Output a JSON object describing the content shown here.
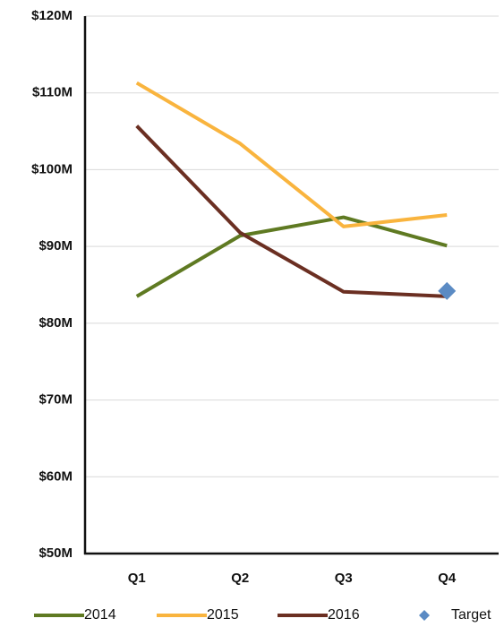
{
  "chart_data": {
    "type": "line",
    "categories": [
      "Q1",
      "Q2",
      "Q3",
      "Q4"
    ],
    "series": [
      {
        "name": "2014",
        "color": "#5f7a22",
        "values": [
          83.5,
          91.4,
          93.8,
          90.1
        ]
      },
      {
        "name": "2015",
        "color": "#f9b43e",
        "values": [
          111.3,
          103.4,
          92.6,
          94.1
        ]
      },
      {
        "name": "2016",
        "color": "#6b2f22",
        "values": [
          105.7,
          91.8,
          84.1,
          83.5
        ]
      },
      {
        "name": "Target",
        "color": "#5b8bc4",
        "marker": "diamond",
        "values": [
          null,
          null,
          null,
          84.2
        ]
      }
    ],
    "ylim": [
      50,
      120
    ],
    "yticks": [
      {
        "value": 50,
        "label": "$50M"
      },
      {
        "value": 60,
        "label": "$60M"
      },
      {
        "value": 70,
        "label": "$70M"
      },
      {
        "value": 80,
        "label": "$80M"
      },
      {
        "value": 90,
        "label": "$90M"
      },
      {
        "value": 100,
        "label": "$100M"
      },
      {
        "value": 110,
        "label": "$110M"
      },
      {
        "value": 120,
        "label": "$120M"
      }
    ],
    "grid": true
  }
}
